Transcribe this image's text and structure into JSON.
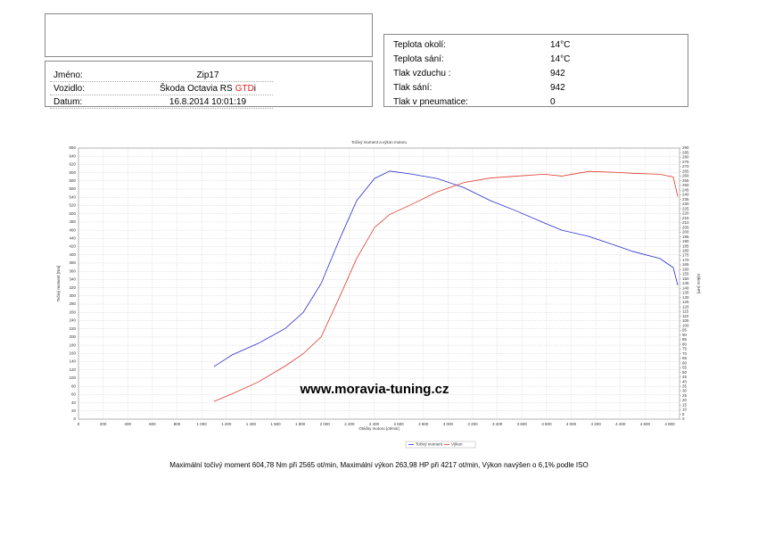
{
  "header": {
    "left_rows": [
      [
        "Jméno:",
        "Zip17"
      ],
      [
        "Vozidlo:",
        [
          "Škoda Octavia RS",
          "GTD",
          "i"
        ]
      ],
      [
        "Datum:",
        "16.8.2014 10:01:19"
      ]
    ],
    "right_rows": [
      [
        "Teplota okolí:",
        "14°C"
      ],
      [
        "Teplota sání:",
        "14°C"
      ],
      [
        "Tlak vzduchu :",
        "942"
      ],
      [
        "Tlak sání:",
        "942"
      ],
      [
        "Tlak v pneumatice:",
        "0"
      ]
    ]
  },
  "watermark": "www.moravia-tuning.cz",
  "footer": "Maximální točivý moment 604,78 Nm při 2565 ot/min, Maximální výkon 263,98 HP při 4217 ot/min, Výkon navýšen o 6,1% podle ISO",
  "chart_data": {
    "type": "line",
    "title": "Točivý moment a výkon motoru",
    "xlabel": "Otáčky motoru [ot/min]",
    "ylabel": "Točivý moment [Nm]",
    "y2label": "Výkon [HP]",
    "x": [
      1100,
      1245,
      1463,
      1680,
      1825,
      1970,
      2114,
      2259,
      2404,
      2527,
      2694,
      2911,
      3128,
      3345,
      3563,
      3780,
      3925,
      4142,
      4359,
      4504,
      4721,
      4829,
      4866
    ],
    "series": [
      {
        "name": "Točivý moment",
        "color": "#2a2ad0",
        "values": [
          128,
          156,
          185,
          221,
          260,
          330,
          434,
          532,
          586,
          604,
          597,
          586,
          564,
          532,
          506,
          478,
          460,
          445,
          423,
          408,
          391,
          369,
          326
        ]
      },
      {
        "name": "Výkon",
        "color": "#e03a2a",
        "axis": "y2",
        "values": [
          19,
          27,
          40,
          57,
          70,
          88,
          129,
          172,
          205,
          219,
          229,
          243,
          253,
          258,
          260,
          262,
          260,
          265,
          264,
          263,
          262,
          259,
          238
        ]
      }
    ],
    "xlim": [
      0,
      4880
    ],
    "xticks": [
      0,
      200,
      400,
      600,
      800,
      {
        "value": 1000,
        "label": "1 000"
      },
      {
        "value": 1200,
        "label": "1 200"
      },
      {
        "value": 1400,
        "label": "1 400"
      },
      {
        "value": 1600,
        "label": "1 600"
      },
      {
        "value": 1800,
        "label": "1 800"
      },
      {
        "value": 2000,
        "label": "2 000"
      },
      {
        "value": 2200,
        "label": "2 200"
      },
      {
        "value": 2400,
        "label": "2 400"
      },
      {
        "value": 2600,
        "label": "2 600"
      },
      {
        "value": 2800,
        "label": "2 800"
      },
      {
        "value": 3000,
        "label": "3 000"
      },
      {
        "value": 3200,
        "label": "3 200"
      },
      {
        "value": 3400,
        "label": "3 400"
      },
      {
        "value": 3600,
        "label": "3 600"
      },
      {
        "value": 3800,
        "label": "3 800"
      },
      {
        "value": 4000,
        "label": "4 000"
      },
      {
        "value": 4200,
        "label": "4 200"
      },
      {
        "value": 4400,
        "label": "4 400"
      },
      {
        "value": 4600,
        "label": "4 600"
      },
      {
        "value": 4800,
        "label": "4 800"
      }
    ],
    "ylim": [
      0,
      660
    ],
    "yticks": [
      0,
      20,
      40,
      60,
      80,
      100,
      120,
      140,
      160,
      180,
      200,
      220,
      240,
      260,
      280,
      300,
      320,
      340,
      360,
      380,
      400,
      420,
      440,
      460,
      480,
      500,
      520,
      540,
      560,
      580,
      600,
      620,
      640,
      660
    ],
    "y2lim": [
      0,
      290
    ],
    "y2ticks": [
      0,
      5,
      10,
      15,
      20,
      25,
      30,
      35,
      40,
      45,
      50,
      55,
      60,
      65,
      70,
      75,
      80,
      85,
      90,
      95,
      100,
      105,
      110,
      115,
      120,
      125,
      130,
      135,
      140,
      145,
      150,
      155,
      160,
      165,
      170,
      175,
      180,
      185,
      190,
      195,
      200,
      205,
      210,
      215,
      220,
      225,
      230,
      235,
      240,
      245,
      250,
      255,
      260,
      265,
      270,
      275,
      280,
      285,
      290
    ],
    "grid": true
  }
}
